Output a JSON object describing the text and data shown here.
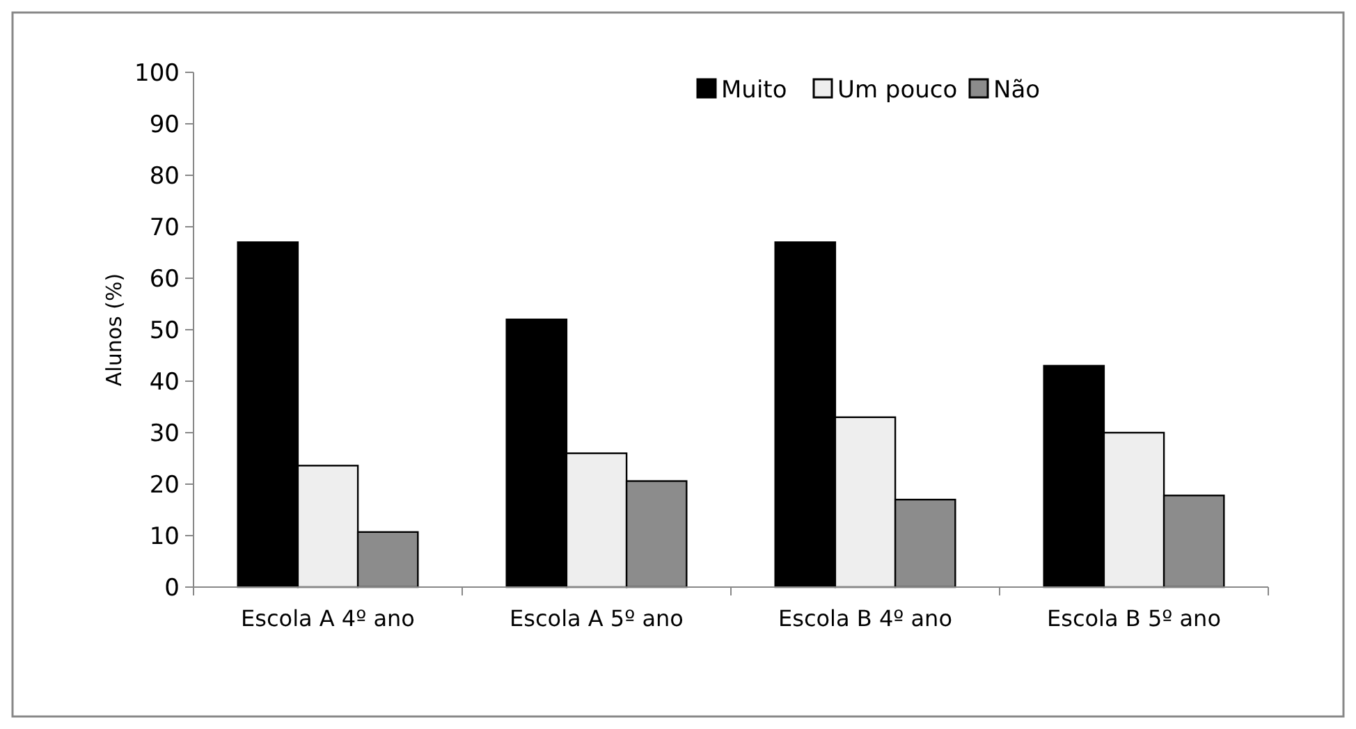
{
  "chart_data": {
    "type": "bar",
    "ylabel": "Alunos (%)",
    "categories": [
      "Escola A 4º ano",
      "Escola A 5º ano",
      "Escola B 4º ano",
      "Escola B 5º ano"
    ],
    "series": [
      {
        "name": "Muito",
        "color": "#000000",
        "values": [
          67,
          52,
          67,
          43
        ]
      },
      {
        "name": "Um pouco",
        "color": "#eeeeee",
        "values": [
          23.6,
          26,
          33,
          30
        ]
      },
      {
        "name": "Não",
        "color": "#8c8c8c",
        "values": [
          10.7,
          20.6,
          17,
          17.8
        ]
      }
    ],
    "ylim": [
      0,
      100
    ],
    "yticks": [
      0,
      10,
      20,
      30,
      40,
      50,
      60,
      70,
      80,
      90,
      100
    ],
    "grid": false,
    "legend": "top right"
  }
}
